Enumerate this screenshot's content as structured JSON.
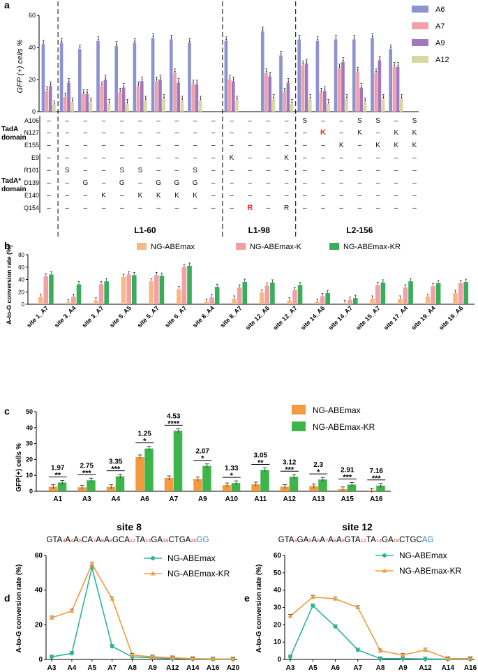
{
  "panel_labels": [
    "a",
    "b",
    "c",
    "d",
    "e"
  ],
  "colors": {
    "A6": "#8c93d0",
    "A7": "#f0a0a6",
    "A9": "#a078c0",
    "A12": "#d8d8a0",
    "ngabemax": "#f7b983",
    "ngabemax_k": "#f2a0a6",
    "ngabemax_kr": "#3aad5c",
    "c_ngabemax": "#f39a3e",
    "c_ngabemax_kr": "#3eb54a",
    "line_ngabemax": "#2ab59a",
    "line_ngabemax_kr": "#f29a3e",
    "seq_red": "#e8362e",
    "seq_blue": "#2a80c4",
    "highlight": "#e8282a"
  },
  "panel_a": {
    "ylabel": "GFP (+) cells %",
    "yticks": [
      "0",
      "20",
      "40",
      "60"
    ],
    "legend": [
      "A6",
      "A7",
      "A9",
      "A12"
    ],
    "groups": [
      "L1-60",
      "L1-98",
      "L2-156"
    ],
    "domain_labels": [
      [
        "TadA",
        "domain"
      ],
      [
        "TadA*",
        "domain"
      ]
    ],
    "row_labels": [
      "A106",
      "N127",
      "E155",
      "E9",
      "R101",
      "D139",
      "E140",
      "Q154"
    ],
    "mutation_table": [
      [
        "–",
        "–",
        "–",
        "–",
        "–",
        "–",
        "–",
        "–",
        "–",
        "–",
        "–",
        "–",
        "–",
        "–",
        "S",
        "–",
        "–",
        "S",
        "S",
        "–",
        "S"
      ],
      [
        "–",
        "–",
        "–",
        "–",
        "–",
        "–",
        "–",
        "–",
        "–",
        "–",
        "–",
        "–",
        "–",
        "–",
        "–",
        "K",
        "–",
        "K",
        "–",
        "K",
        "K"
      ],
      [
        "–",
        "–",
        "–",
        "–",
        "–",
        "–",
        "–",
        "–",
        "–",
        "–",
        "–",
        "–",
        "–",
        "–",
        "–",
        "–",
        "K",
        "–",
        "K",
        "K",
        "K"
      ],
      [
        "–",
        "–",
        "–",
        "–",
        "–",
        "–",
        "–",
        "–",
        "–",
        "–",
        "K",
        "–",
        "–",
        "K",
        "–",
        "–",
        "–",
        "–",
        "–",
        "–",
        "–"
      ],
      [
        "–",
        "S",
        "–",
        "–",
        "S",
        "S",
        "–",
        "–",
        "S",
        "–",
        "–",
        "–",
        "–",
        "–",
        "–",
        "–",
        "–",
        "–",
        "–",
        "–",
        "–"
      ],
      [
        "–",
        "–",
        "G",
        "–",
        "G",
        "–",
        "G",
        "G",
        "G",
        "–",
        "–",
        "–",
        "–",
        "–",
        "–",
        "–",
        "–",
        "–",
        "–",
        "–",
        "–"
      ],
      [
        "–",
        "–",
        "–",
        "K",
        "–",
        "K",
        "K",
        "K",
        "K",
        "–",
        "–",
        "–",
        "–",
        "–",
        "–",
        "–",
        "–",
        "–",
        "–",
        "–",
        "–"
      ],
      [
        "–",
        "–",
        "–",
        "–",
        "–",
        "–",
        "–",
        "–",
        "–",
        "–",
        "–",
        "R",
        "–",
        "R",
        "–",
        "–",
        "–",
        "–",
        "–",
        "–",
        "–"
      ]
    ],
    "chart_data": {
      "type": "bar",
      "ylim": [
        0,
        60
      ],
      "series": [
        {
          "name": "A6",
          "values": [
            42,
            43,
            39,
            44,
            41,
            43,
            46,
            45,
            43,
            44,
            50,
            35,
            45,
            44,
            45,
            45,
            46,
            39
          ]
        },
        {
          "name": "A7",
          "values": [
            13,
            9,
            11,
            16,
            12,
            16,
            19,
            24,
            17,
            20,
            24,
            12,
            29,
            12,
            27,
            25,
            24,
            28
          ]
        },
        {
          "name": "A9",
          "values": [
            16,
            18,
            11,
            20,
            15,
            19,
            20,
            18,
            17,
            19,
            22,
            18,
            30,
            13,
            31,
            15,
            32,
            28
          ]
        },
        {
          "name": "A12",
          "values": [
            4,
            6,
            6,
            5,
            5,
            7,
            8,
            7,
            7,
            7,
            8,
            5,
            8,
            5,
            8,
            6,
            8,
            8
          ]
        }
      ]
    }
  },
  "panel_b": {
    "ylabel": "A-to-G conversion rate (%)",
    "yticks": [
      "0",
      "20",
      "40",
      "60",
      "80"
    ],
    "chart_data": {
      "type": "bar",
      "ylim": [
        0,
        80
      ],
      "categories": [
        "site 1_A7",
        "site 3_A4",
        "site 3_A7",
        "site 5_A5",
        "site 5_A7",
        "site 6_A7",
        "site 8_A4",
        "site 8_A7",
        "site 12_A6",
        "site 12_A7",
        "site 14_A6",
        "site 14_A7",
        "site 15_A7",
        "site 17_A4",
        "site 19_A4",
        "site 19_A6"
      ],
      "series": [
        {
          "name": "NG-ABEmax",
          "values": [
            12,
            3,
            6,
            44,
            37,
            24,
            4,
            9,
            19,
            6,
            4,
            2,
            9,
            9,
            12,
            18
          ]
        },
        {
          "name": "NG-ABEmax-K",
          "values": [
            45,
            12,
            32,
            48,
            47,
            60,
            11,
            27,
            30,
            23,
            13,
            7,
            31,
            27,
            29,
            34
          ]
        },
        {
          "name": "NG-ABEmax-KR",
          "values": [
            48,
            32,
            37,
            47,
            46,
            62,
            28,
            36,
            35,
            31,
            18,
            10,
            35,
            37,
            34,
            36
          ]
        }
      ]
    }
  },
  "panel_c": {
    "ylabel": "GFP(+) cells  %",
    "yticks": [
      "0",
      "10",
      "20",
      "30",
      "40",
      "50"
    ],
    "fold": [
      "1.97",
      "2.75",
      "3.35",
      "1.25",
      "4.53",
      "2.07",
      "1.33",
      "3.05",
      "3.12",
      "2.3",
      "2.91",
      "7.16"
    ],
    "sig": [
      "**",
      "***",
      "***",
      "*",
      "****",
      "*",
      "*",
      "**",
      "***",
      "*",
      "***",
      "***"
    ],
    "chart_data": {
      "type": "bar",
      "ylim": [
        0,
        50
      ],
      "categories": [
        "A1",
        "A3",
        "A4",
        "A6",
        "A7",
        "A9",
        "A10",
        "A11",
        "A12",
        "A13",
        "A15",
        "A16"
      ],
      "series": [
        {
          "name": "NG-ABEmax",
          "values": [
            2.8,
            2.5,
            2.8,
            21.5,
            8.3,
            7.7,
            3.9,
            4.4,
            2.9,
            3.2,
            1.4,
            0.5
          ]
        },
        {
          "name": "NG-ABEmax-KR",
          "values": [
            5.5,
            6.9,
            9.4,
            26.9,
            38,
            15.9,
            5.2,
            13.4,
            9.1,
            7.4,
            4.2,
            3.6
          ]
        }
      ]
    }
  },
  "panel_d": {
    "title": "site 8",
    "sequence": [
      [
        "GTA",
        ""
      ],
      [
        "3",
        "r"
      ],
      [
        "A",
        ""
      ],
      [
        "4",
        "r"
      ],
      [
        "A",
        ""
      ],
      [
        "5",
        "r"
      ],
      [
        "CA",
        ""
      ],
      [
        "7",
        "r"
      ],
      [
        "A",
        ""
      ],
      [
        "8",
        "r"
      ],
      [
        "A",
        ""
      ],
      [
        "9",
        "r"
      ],
      [
        "GCA",
        ""
      ],
      [
        "12",
        "r"
      ],
      [
        "TA",
        ""
      ],
      [
        "14",
        "r"
      ],
      [
        "GA",
        ""
      ],
      [
        "16",
        "r"
      ],
      [
        "CTGA",
        ""
      ],
      [
        "20",
        "r"
      ],
      [
        "GG",
        "b"
      ]
    ],
    "ylabel": "A-to-G conversion rate (%)",
    "yticks": [
      "0",
      "20",
      "40",
      "60"
    ],
    "chart_data": {
      "type": "line",
      "ylim": [
        0,
        60
      ],
      "categories": [
        "A3",
        "A4",
        "A5",
        "A7",
        "A8",
        "A9",
        "A12",
        "A14",
        "A16",
        "A20"
      ],
      "series": [
        {
          "name": "NG-ABEmax",
          "values": [
            1.5,
            3.5,
            53,
            7.5,
            1.5,
            1,
            0.5,
            0.3,
            0.2,
            0.2
          ]
        },
        {
          "name": "NG-ABEmax-KR",
          "values": [
            24,
            28,
            55,
            35,
            2.5,
            1.5,
            1,
            0.5,
            0.3,
            0.3
          ]
        }
      ]
    }
  },
  "panel_e": {
    "title": "site 12",
    "sequence": [
      [
        "GTA",
        ""
      ],
      [
        "3",
        "r"
      ],
      [
        "GA",
        ""
      ],
      [
        "5",
        "r"
      ],
      [
        "A",
        ""
      ],
      [
        "6",
        "r"
      ],
      [
        "A",
        ""
      ],
      [
        "7",
        "r"
      ],
      [
        "A",
        ""
      ],
      [
        "8",
        "r"
      ],
      [
        "A",
        ""
      ],
      [
        "9",
        "r"
      ],
      [
        "GTA",
        ""
      ],
      [
        "12",
        "r"
      ],
      [
        "TA",
        ""
      ],
      [
        "14",
        "r"
      ],
      [
        "GA",
        ""
      ],
      [
        "16",
        "r"
      ],
      [
        "CTGC",
        ""
      ],
      [
        "AG",
        "b"
      ]
    ],
    "ylabel": "A-to-G conversion rate (%)",
    "yticks": [
      "0",
      "10",
      "20",
      "30",
      "40",
      "50",
      "60"
    ],
    "chart_data": {
      "type": "line",
      "ylim": [
        0,
        60
      ],
      "categories": [
        "A3",
        "A5",
        "A6",
        "A7",
        "A8",
        "A9",
        "A12",
        "A14",
        "A16"
      ],
      "series": [
        {
          "name": "NG-ABEmax",
          "values": [
            1.5,
            31,
            19,
            5.5,
            0.5,
            0.5,
            0.3,
            0.2,
            0.2
          ]
        },
        {
          "name": "NG-ABEmax-KR",
          "values": [
            25,
            36,
            35,
            30,
            5,
            2.5,
            5.5,
            0.5,
            0.5
          ]
        }
      ]
    }
  }
}
